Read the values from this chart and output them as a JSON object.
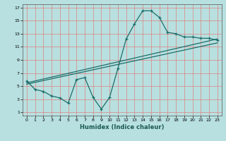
{
  "xlabel": "Humidex (Indice chaleur)",
  "bg_color": "#b8e0e0",
  "grid_color": "#e08080",
  "line_color": "#1a6e6a",
  "xlim": [
    -0.5,
    23.5
  ],
  "ylim": [
    0.5,
    17.5
  ],
  "xticks": [
    0,
    1,
    2,
    3,
    4,
    5,
    6,
    7,
    8,
    9,
    10,
    11,
    12,
    13,
    14,
    15,
    16,
    17,
    18,
    19,
    20,
    21,
    22,
    23
  ],
  "yticks": [
    1,
    3,
    5,
    7,
    9,
    11,
    13,
    15,
    17
  ],
  "line1_x": [
    0,
    1,
    2,
    3,
    4,
    5,
    6,
    7,
    8,
    9,
    10,
    11,
    12,
    13,
    14,
    15,
    16,
    17,
    18,
    19,
    20,
    21,
    22,
    23
  ],
  "line1_y": [
    5.8,
    4.5,
    4.2,
    3.5,
    3.2,
    2.4,
    6.0,
    6.3,
    3.3,
    1.5,
    3.3,
    7.7,
    12.2,
    14.5,
    16.5,
    16.5,
    15.5,
    13.2,
    13.0,
    12.5,
    12.5,
    12.3,
    12.3,
    12.0
  ],
  "line2_x": [
    0,
    23
  ],
  "line2_y": [
    5.5,
    12.2
  ],
  "line3_x": [
    0,
    23
  ],
  "line3_y": [
    5.3,
    11.6
  ],
  "xlabel_color": "#1a5a50",
  "xlabel_fontsize": 6,
  "tick_fontsize": 4.5
}
